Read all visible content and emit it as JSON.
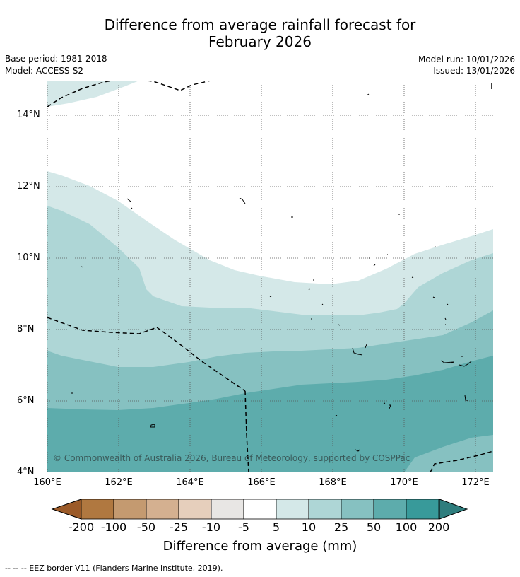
{
  "title_line1": "Difference from average rainfall forecast for",
  "title_line2": "February 2026",
  "base_period": "Base period: 1981-2018",
  "model": "Model: ACCESS-S2",
  "model_run": "Model run: 10/01/2026",
  "issued": "Issued: 13/01/2026",
  "copyright": "© Commonwealth of Australia 2026, Bureau of Meteorology, supported by COSPPac",
  "footnote": "--  --  -- EEZ border V11 (Flanders Marine Institute, 2019).",
  "axes": {
    "lat_labels": [
      "14°N",
      "12°N",
      "10°N",
      "8°N",
      "6°N",
      "4°N"
    ],
    "lon_labels": [
      "160°E",
      "162°E",
      "164°E",
      "166°E",
      "168°E",
      "170°E",
      "172°E"
    ],
    "lat_range": [
      4,
      15
    ],
    "lon_range": [
      160,
      172.5
    ]
  },
  "legend": {
    "title": "Difference from average (mm)",
    "ticks": [
      "-200",
      "-100",
      "-50",
      "-25",
      "-10",
      "-5",
      "5",
      "10",
      "25",
      "50",
      "100",
      "200"
    ],
    "colors": [
      "#9b5a28",
      "#b07840",
      "#c49a70",
      "#d4b090",
      "#e6cfbc",
      "#e8e6e4",
      "#ffffff",
      "#d4e8e8",
      "#aed6d6",
      "#86c1c1",
      "#5dacac",
      "#389a9a",
      "#2e7d7d"
    ]
  }
}
